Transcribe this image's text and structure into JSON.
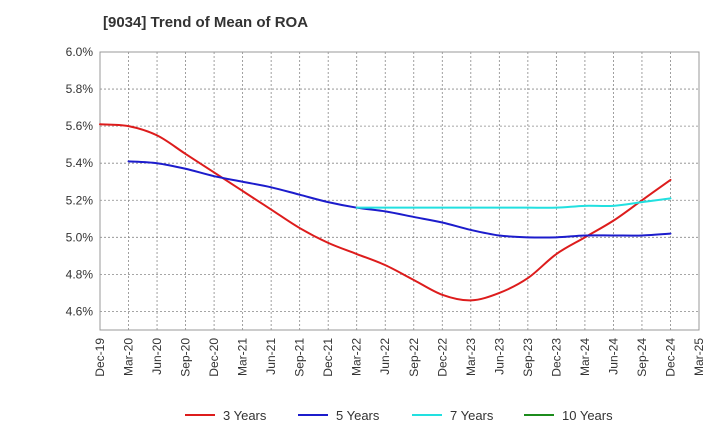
{
  "chart_data": {
    "type": "line",
    "title": "[9034]  Trend of Mean of ROA",
    "xlabel": "",
    "ylabel": "",
    "ylim": [
      4.5,
      6.0
    ],
    "y_ticks": [
      4.6,
      4.8,
      5.0,
      5.2,
      5.4,
      5.6,
      5.8,
      6.0
    ],
    "y_tick_labels": [
      "4.6%",
      "4.8%",
      "5.0%",
      "5.2%",
      "5.4%",
      "5.6%",
      "5.8%",
      "6.0%"
    ],
    "x_tick_labels": [
      "Dec-19",
      "Mar-20",
      "Jun-20",
      "Sep-20",
      "Dec-20",
      "Mar-21",
      "Jun-21",
      "Sep-21",
      "Dec-21",
      "Mar-22",
      "Jun-22",
      "Sep-22",
      "Dec-22",
      "Mar-23",
      "Jun-23",
      "Sep-23",
      "Dec-23",
      "Mar-24",
      "Jun-24",
      "Sep-24",
      "Dec-24",
      "Mar-25"
    ],
    "grid": true,
    "legend_position": "bottom",
    "series": [
      {
        "name": "3 Years",
        "color": "#dd1c1c",
        "values": [
          5.61,
          5.6,
          5.55,
          5.45,
          5.35,
          5.25,
          5.15,
          5.05,
          4.97,
          4.91,
          4.85,
          4.77,
          4.69,
          4.66,
          4.7,
          4.78,
          4.91,
          5.0,
          5.09,
          5.2,
          5.31,
          null
        ]
      },
      {
        "name": "5 Years",
        "color": "#1c1ccc",
        "values": [
          null,
          5.41,
          5.4,
          5.37,
          5.33,
          5.3,
          5.27,
          5.23,
          5.19,
          5.16,
          5.14,
          5.11,
          5.08,
          5.04,
          5.01,
          5.0,
          5.0,
          5.01,
          5.01,
          5.01,
          5.02,
          null
        ]
      },
      {
        "name": "7 Years",
        "color": "#22e0e0",
        "values": [
          null,
          null,
          null,
          null,
          null,
          null,
          null,
          null,
          null,
          5.16,
          5.16,
          5.16,
          5.16,
          5.16,
          5.16,
          5.16,
          5.16,
          5.17,
          5.17,
          5.19,
          5.21,
          null
        ]
      },
      {
        "name": "10 Years",
        "color": "#1c8c1c",
        "values": [
          null,
          null,
          null,
          null,
          null,
          null,
          null,
          null,
          null,
          null,
          null,
          null,
          null,
          null,
          null,
          null,
          null,
          null,
          null,
          null,
          null,
          null
        ]
      }
    ]
  }
}
